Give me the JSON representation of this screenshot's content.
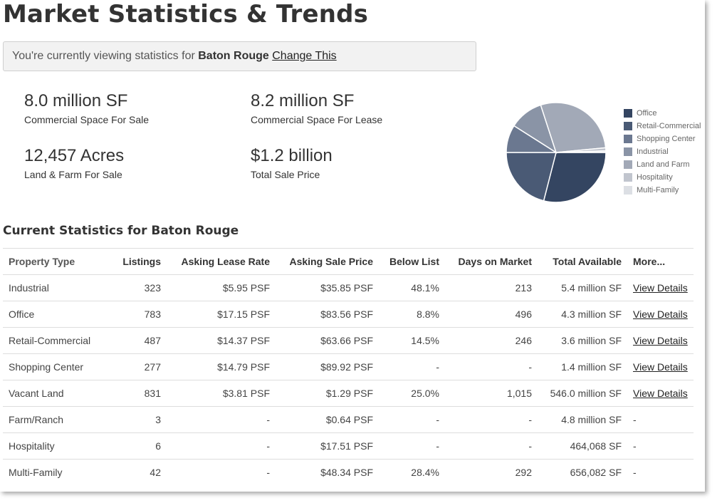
{
  "title": "Market Statistics & Trends",
  "location_bar": {
    "prefix": "You're currently viewing statistics for",
    "city": "Baton Rouge",
    "change_link": "Change This"
  },
  "stats": [
    {
      "value": "8.0 million SF",
      "label": "Commercial Space For Sale"
    },
    {
      "value": "8.2 million SF",
      "label": "Commercial Space For Lease"
    },
    {
      "value": "12,457 Acres",
      "label": "Land & Farm For Sale"
    },
    {
      "value": "$1.2 billion",
      "label": "Total Sale Price"
    }
  ],
  "pie": {
    "slices": [
      {
        "name": "Office",
        "color": "#344561",
        "value": 29
      },
      {
        "name": "Retail-Commercial",
        "color": "#4a5a75",
        "value": 21
      },
      {
        "name": "Shopping Center",
        "color": "#6b7890",
        "value": 9
      },
      {
        "name": "Industrial",
        "color": "#8a94a6",
        "value": 11
      },
      {
        "name": "Land and Farm",
        "color": "#a2a9b7",
        "value": 28.5
      },
      {
        "name": "Hospitality",
        "color": "#c1c5ce",
        "value": 1
      },
      {
        "name": "Multi-Family",
        "color": "#dcdfe4",
        "value": 0.5
      }
    ]
  },
  "table": {
    "title": "Current Statistics for Baton Rouge",
    "headers": [
      "Property Type",
      "Listings",
      "Asking Lease Rate",
      "Asking Sale Price",
      "Below List",
      "Days on Market",
      "Total Available",
      "More..."
    ],
    "rows": [
      [
        "Industrial",
        "323",
        "$5.95 PSF",
        "$35.85 PSF",
        "48.1%",
        "213",
        "5.4 million SF",
        "View Details"
      ],
      [
        "Office",
        "783",
        "$17.15 PSF",
        "$83.56 PSF",
        "8.8%",
        "496",
        "4.3 million SF",
        "View Details"
      ],
      [
        "Retail-Commercial",
        "487",
        "$14.37 PSF",
        "$63.66 PSF",
        "14.5%",
        "246",
        "3.6 million SF",
        "View Details"
      ],
      [
        "Shopping Center",
        "277",
        "$14.79 PSF",
        "$89.92 PSF",
        "-",
        "-",
        "1.4 million SF",
        "View Details"
      ],
      [
        "Vacant Land",
        "831",
        "$3.81 PSF",
        "$1.29 PSF",
        "25.0%",
        "1,015",
        "546.0 million SF",
        "View Details"
      ],
      [
        "Farm/Ranch",
        "3",
        "-",
        "$0.64 PSF",
        "-",
        "-",
        "4.8 million SF",
        "-"
      ],
      [
        "Hospitality",
        "6",
        "-",
        "$17.51 PSF",
        "-",
        "-",
        "464,068 SF",
        "-"
      ],
      [
        "Multi-Family",
        "42",
        "-",
        "$48.34 PSF",
        "28.4%",
        "292",
        "656,082 SF",
        "-"
      ]
    ]
  }
}
